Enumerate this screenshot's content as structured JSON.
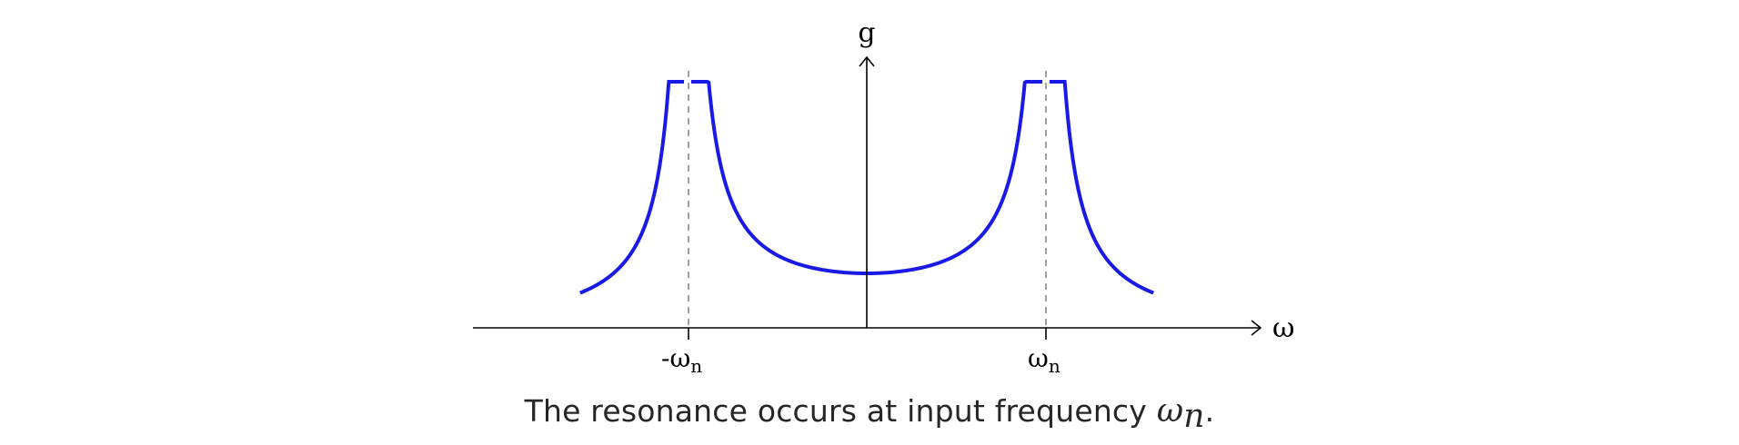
{
  "axes": {
    "y_label": "g",
    "x_label": "ω"
  },
  "ticks": [
    {
      "label_main": "-ω",
      "label_sub": "n",
      "value": -1
    },
    {
      "label_main": "ω",
      "label_sub": "n",
      "value": 1
    }
  ],
  "curve_color": "#1a1ae6",
  "caption": {
    "text": "The resonance occurs at input frequency ",
    "symbol": "ω",
    "subscript": "n",
    "end": "."
  }
}
